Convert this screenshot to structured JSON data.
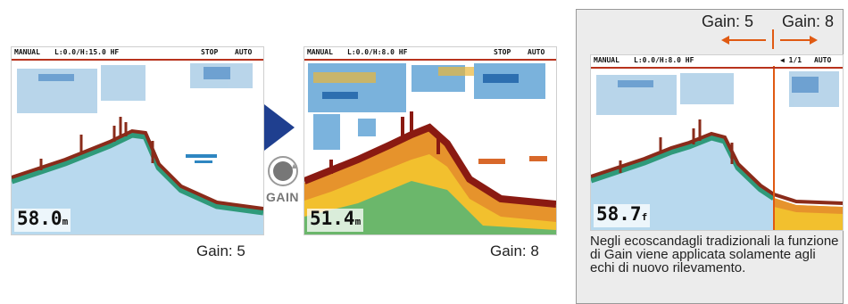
{
  "screens": [
    {
      "mode": "MANUAL",
      "range": "L:0.0/H:15.0 HF",
      "status": "STOP",
      "auto": "AUTO",
      "depth": "58.0",
      "unit": "m"
    },
    {
      "mode": "MANUAL",
      "range": "L:0.0/H:8.0 HF",
      "status": "STOP",
      "auto": "AUTO",
      "depth": "51.4",
      "unit": "m"
    },
    {
      "mode": "MANUAL",
      "range": "L:0.0/H:8.0 HF",
      "status": "◀ 1/1",
      "auto": "AUTO",
      "depth": "58.7",
      "unit": "f"
    }
  ],
  "captions": {
    "left": "Gain: 5",
    "middle": "Gain: 8"
  },
  "control": {
    "label": "GAIN",
    "icon": "gain-knob-icon",
    "arrow_icon": "play-arrow-icon"
  },
  "panel": {
    "gain_left": "Gain: 5",
    "gain_right": "Gain: 8",
    "description": "Negli ecoscandagli tradizionali la funzione di Gain viene applicata solamente agli echi di nuovo rilevamento."
  },
  "colors": {
    "arrow": "#1f3f8f",
    "divider": "#e05a12",
    "header_line": "#b8321c",
    "panel_bg": "#ececec"
  }
}
